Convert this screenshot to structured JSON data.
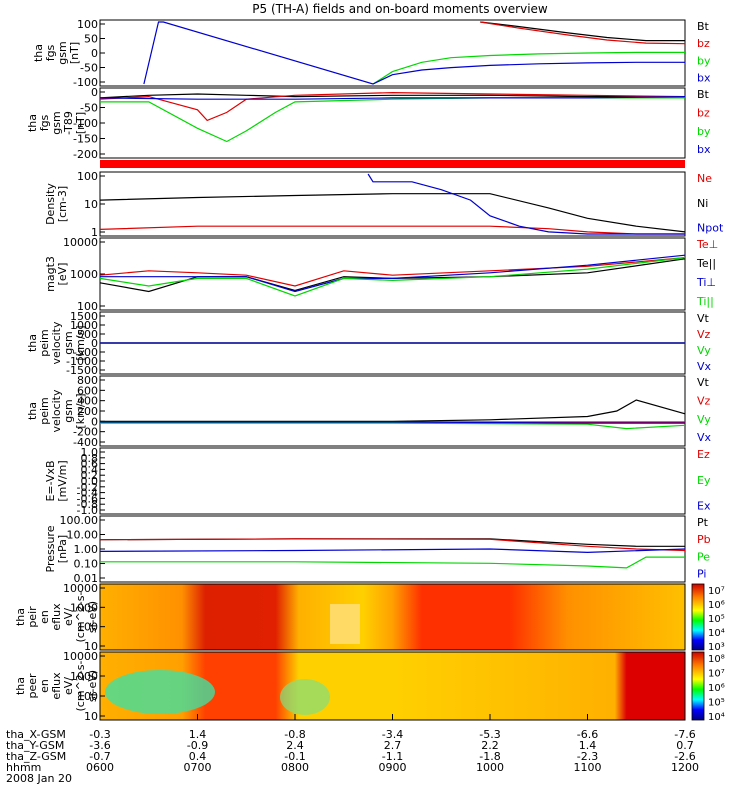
{
  "title": "P5 (TH-A) fields and on-board moments overview",
  "colors": {
    "black": "#000000",
    "red": "#e00000",
    "green": "#00d800",
    "blue": "#0000d0",
    "band": "#ff0000"
  },
  "panels": [
    {
      "id": "fgs",
      "ylabel": [
        "tha",
        "fgs",
        "gsm",
        "[nT]"
      ],
      "ylim": [
        -100,
        100
      ],
      "ticks": [
        "100",
        "50",
        "0",
        "-50",
        "-100"
      ],
      "legend": [
        {
          "label": "Bt",
          "color": "black"
        },
        {
          "label": "bz",
          "color": "red"
        },
        {
          "label": "by",
          "color": "green"
        },
        {
          "label": "bx",
          "color": "blue"
        }
      ]
    },
    {
      "id": "fgs_t89",
      "ylabel": [
        "tha",
        "fgs",
        "gsm",
        "-T89",
        "[nT]"
      ],
      "ylim": [
        -225,
        25
      ],
      "ticks": [
        "0",
        "-50",
        "-100",
        "-150",
        "-200"
      ],
      "legend": [
        {
          "label": "Bt",
          "color": "black"
        },
        {
          "label": "bz",
          "color": "red"
        },
        {
          "label": "by",
          "color": "green"
        },
        {
          "label": "bx",
          "color": "blue"
        }
      ]
    },
    {
      "id": "density",
      "ylabel": [
        "Density",
        "[cm-3]"
      ],
      "ylim": [
        1,
        200
      ],
      "log": true,
      "ticks": [
        "100",
        "10",
        "1"
      ],
      "legend": [
        {
          "label": "Ne",
          "color": "red"
        },
        {
          "label": "Ni",
          "color": "black"
        },
        {
          "label": "Npot",
          "color": "blue"
        }
      ]
    },
    {
      "id": "temperature",
      "ylabel": [
        "magt3",
        "[eV]"
      ],
      "ylim": [
        20,
        10000
      ],
      "log": true,
      "ticks": [
        "10000",
        "1000",
        "100"
      ],
      "legend": [
        {
          "label": "Te⊥",
          "color": "red"
        },
        {
          "label": "Te||",
          "color": "black"
        },
        {
          "label": "Ti⊥",
          "color": "blue"
        },
        {
          "label": "Ti||",
          "color": "green"
        }
      ]
    },
    {
      "id": "eesa_vel",
      "ylabel": [
        "tha",
        "peim",
        "velocity",
        "gsm",
        "[km/s]"
      ],
      "ylim": [
        -1500,
        1500
      ],
      "ticks": [
        "1500",
        "1000",
        "500",
        "0",
        "-500",
        "-1000",
        "-1500"
      ],
      "legend": [
        {
          "label": "Vt",
          "color": "black"
        },
        {
          "label": "Vz",
          "color": "red"
        },
        {
          "label": "Vy",
          "color": "green"
        },
        {
          "label": "Vx",
          "color": "blue"
        }
      ]
    },
    {
      "id": "iesa_vel",
      "ylabel": [
        "tha",
        "peim",
        "velocity",
        "gsm",
        "[km/s]"
      ],
      "ylim": [
        -400,
        800
      ],
      "ticks": [
        "800",
        "600",
        "400",
        "200",
        "0",
        "-200",
        "-400"
      ],
      "legend": [
        {
          "label": "Vt",
          "color": "black"
        },
        {
          "label": "Vz",
          "color": "red"
        },
        {
          "label": "Vy",
          "color": "green"
        },
        {
          "label": "Vx",
          "color": "blue"
        }
      ]
    },
    {
      "id": "efield",
      "ylabel": [
        "E=-VxB",
        "[mV/m]"
      ],
      "ylim": [
        -1,
        1
      ],
      "ticks": [
        "1.0",
        "0.8",
        "0.6",
        "0.4",
        "0.2",
        "0.0",
        "-0.2",
        "-0.4",
        "-0.6",
        "-0.8",
        "-1.0"
      ],
      "legend": [
        {
          "label": "Ez",
          "color": "red"
        },
        {
          "label": "Ey",
          "color": "green"
        },
        {
          "label": "Ex",
          "color": "blue"
        }
      ]
    },
    {
      "id": "pressure",
      "ylabel": [
        "Pressure",
        "[nPa]"
      ],
      "ylim": [
        0.01,
        100
      ],
      "log": true,
      "ticks": [
        "100.00",
        "10.00",
        "1.00",
        "0.10",
        "0.01"
      ],
      "legend": [
        {
          "label": "Pt",
          "color": "black"
        },
        {
          "label": "Pb",
          "color": "red"
        },
        {
          "label": "Pe",
          "color": "green"
        },
        {
          "label": "Pi",
          "color": "blue"
        }
      ]
    },
    {
      "id": "ion_spec",
      "ylabel": [
        "tha",
        "peir",
        "en",
        "eflux",
        "eV/",
        "(cm^2-s-",
        "sr-eV)"
      ],
      "ticks": [
        "10000",
        "1000",
        "100",
        "10"
      ],
      "colorbar_ticks": [
        "10⁷",
        "10⁶",
        "10⁵",
        "10⁴",
        "10³"
      ]
    },
    {
      "id": "elec_spec",
      "ylabel": [
        "tha",
        "peer",
        "en",
        "eflux",
        "eV/",
        "(cm^2-s-",
        "sr-eV)"
      ],
      "ticks": [
        "10000",
        "1000",
        "100",
        "10"
      ],
      "colorbar_ticks": [
        "10⁸",
        "10⁷",
        "10⁶",
        "10⁵",
        "10⁴"
      ]
    }
  ],
  "xaxis": {
    "row_labels": [
      "tha_X-GSM",
      "tha_Y-GSM",
      "tha_Z-GSM",
      "hhmm",
      "2008 Jan 20"
    ],
    "columns": [
      [
        "-0.3",
        "-3.6",
        "-0.7",
        "0600"
      ],
      [
        "1.4",
        "-0.9",
        "0.4",
        "0700"
      ],
      [
        "-0.8",
        "2.4",
        "-0.1",
        "0800"
      ],
      [
        "-3.4",
        "2.7",
        "-1.1",
        "0900"
      ],
      [
        "-5.3",
        "2.2",
        "-1.8",
        "1000"
      ],
      [
        "-6.6",
        "1.4",
        "-2.3",
        "1100"
      ],
      [
        "-7.6",
        "0.7",
        "-2.6",
        "1200"
      ]
    ]
  },
  "chart_data": [
    {
      "type": "line",
      "panel": "fgs",
      "x_unit": "hours UT",
      "ylim": [
        -100,
        100
      ],
      "series": [
        {
          "name": "Bt",
          "x": [
            9.9,
            10.3,
            10.8,
            11.2,
            11.6,
            12.0
          ],
          "y": [
            100,
            85,
            65,
            50,
            40,
            40
          ]
        },
        {
          "name": "bz",
          "x": [
            9.9,
            10.3,
            10.8,
            11.2,
            11.6,
            12.0
          ],
          "y": [
            100,
            80,
            58,
            42,
            32,
            30
          ]
        },
        {
          "name": "by",
          "x": [
            8.8,
            9.0,
            9.3,
            9.6,
            10.0,
            10.5,
            11.0,
            11.5,
            12.0
          ],
          "y": [
            -100,
            -60,
            -30,
            -15,
            -8,
            -3,
            0,
            2,
            2
          ]
        },
        {
          "name": "bx",
          "x": [
            6.45,
            6.6,
            6.65,
            8.8,
            9.0,
            9.3,
            9.6,
            10.0,
            10.5,
            11.0,
            11.5,
            12.0
          ],
          "y": [
            -100,
            100,
            100,
            -100,
            -70,
            -55,
            -47,
            -40,
            -35,
            -32,
            -30,
            -30
          ]
        }
      ]
    },
    {
      "type": "line",
      "panel": "fgs_t89",
      "x_unit": "hours UT",
      "ylim": [
        -225,
        25
      ],
      "series": [
        {
          "name": "Bt",
          "x": [
            6.0,
            6.5,
            7.0,
            7.5,
            8.0,
            9.0,
            10.0,
            11.0,
            12.0
          ],
          "y": [
            -5,
            5,
            10,
            5,
            0,
            5,
            5,
            0,
            0
          ]
        },
        {
          "name": "bz",
          "x": [
            6.0,
            6.5,
            7.0,
            7.1,
            7.3,
            7.5,
            8.0,
            9.0,
            10.0,
            11.0,
            12.0
          ],
          "y": [
            -10,
            0,
            -50,
            -90,
            -60,
            -10,
            5,
            15,
            10,
            5,
            0
          ]
        },
        {
          "name": "by",
          "x": [
            6.0,
            6.5,
            7.0,
            7.3,
            7.5,
            7.8,
            8.0,
            9.0,
            10.0,
            11.0,
            12.0
          ],
          "y": [
            -20,
            -20,
            -120,
            -170,
            -130,
            -60,
            -20,
            -10,
            -5,
            -5,
            -5
          ]
        },
        {
          "name": "bx",
          "x": [
            6.0,
            7.0,
            8.0,
            9.0,
            10.0,
            11.0,
            12.0
          ],
          "y": [
            -5,
            -10,
            -10,
            -5,
            -5,
            -5,
            0
          ]
        }
      ]
    },
    {
      "type": "line",
      "panel": "density",
      "x_unit": "hours UT",
      "log": true,
      "ylim": [
        1,
        200
      ],
      "series": [
        {
          "name": "Ne",
          "x": [
            6.0,
            7.0,
            8.0,
            9.0,
            10.0,
            10.6,
            11.0,
            11.5,
            12.0
          ],
          "y": [
            1.5,
            2,
            2,
            2,
            2,
            1.6,
            1.2,
            1.0,
            1.0
          ]
        },
        {
          "name": "Ni",
          "x": [
            6.0,
            7.0,
            8.0,
            9.0,
            10.0,
            10.6,
            11.0,
            11.5,
            12.0
          ],
          "y": [
            20,
            25,
            30,
            35,
            35,
            10,
            4,
            2,
            1.2
          ]
        },
        {
          "name": "Npot",
          "x": [
            8.75,
            8.8,
            9.2,
            9.5,
            9.8,
            10.0,
            10.3,
            10.6,
            11.0,
            12.0
          ],
          "y": [
            200,
            100,
            100,
            50,
            20,
            5,
            2,
            1.2,
            1.0,
            1.0
          ]
        }
      ]
    },
    {
      "type": "line",
      "panel": "temperature",
      "x_unit": "hours UT",
      "log": true,
      "ylim": [
        20,
        10000
      ],
      "series": [
        {
          "name": "Te⊥",
          "x": [
            6.0,
            6.5,
            7.0,
            7.5,
            8.0,
            8.5,
            9.0,
            10.0,
            11.0,
            12.0
          ],
          "y": [
            400,
            600,
            500,
            400,
            150,
            600,
            400,
            600,
            900,
            2000
          ]
        },
        {
          "name": "Te||",
          "x": [
            6.0,
            6.5,
            7.0,
            7.5,
            8.0,
            8.5,
            9.0,
            10.0,
            11.0,
            12.0
          ],
          "y": [
            200,
            90,
            350,
            350,
            100,
            350,
            300,
            350,
            500,
            1800
          ]
        },
        {
          "name": "Ti⊥",
          "x": [
            6.0,
            6.5,
            7.0,
            7.5,
            8.0,
            8.5,
            9.0,
            10.0,
            11.0,
            12.0
          ],
          "y": [
            350,
            350,
            350,
            350,
            90,
            300,
            300,
            500,
            1000,
            2500
          ]
        },
        {
          "name": "Ti||",
          "x": [
            6.0,
            6.5,
            7.0,
            7.5,
            8.0,
            8.5,
            9.0,
            10.0,
            11.0,
            12.0
          ],
          "y": [
            300,
            150,
            300,
            300,
            60,
            300,
            250,
            350,
            700,
            2000
          ]
        }
      ]
    },
    {
      "type": "line",
      "panel": "eesa_vel",
      "x_unit": "hours UT",
      "ylim": [
        -1500,
        1500
      ],
      "series": [
        {
          "name": "Vt",
          "x": [
            6.0,
            12.0
          ],
          "y": [
            0,
            0
          ]
        },
        {
          "name": "Vz",
          "x": [
            6.0,
            12.0
          ],
          "y": [
            0,
            0
          ]
        },
        {
          "name": "Vy",
          "x": [
            6.0,
            12.0
          ],
          "y": [
            0,
            0
          ]
        },
        {
          "name": "Vx",
          "x": [
            6.0,
            12.0
          ],
          "y": [
            0,
            0
          ]
        }
      ]
    },
    {
      "type": "line",
      "panel": "iesa_vel",
      "x_unit": "hours UT",
      "ylim": [
        -400,
        800
      ],
      "series": [
        {
          "name": "Vt",
          "x": [
            6.0,
            9.0,
            10.0,
            11.0,
            11.3,
            11.5,
            12.0
          ],
          "y": [
            10,
            10,
            40,
            100,
            200,
            400,
            150
          ]
        },
        {
          "name": "Vz",
          "x": [
            6.0,
            9.0,
            11.0,
            12.0
          ],
          "y": [
            0,
            0,
            0,
            0
          ]
        },
        {
          "name": "Vy",
          "x": [
            6.0,
            9.0,
            11.0,
            11.4,
            12.0
          ],
          "y": [
            -20,
            -20,
            -40,
            -120,
            -60
          ]
        },
        {
          "name": "Vx",
          "x": [
            6.0,
            9.0,
            11.0,
            12.0
          ],
          "y": [
            0,
            0,
            -20,
            -20
          ]
        }
      ]
    },
    {
      "type": "line",
      "panel": "pressure",
      "x_unit": "hours UT",
      "log": true,
      "ylim": [
        0.01,
        100
      ],
      "series": [
        {
          "name": "Pt",
          "x": [
            6.0,
            8.0,
            10.0,
            10.5,
            11.0,
            11.5,
            12.0
          ],
          "y": [
            4,
            4.5,
            4.5,
            3,
            2,
            1.5,
            1.5
          ]
        },
        {
          "name": "Pb",
          "x": [
            6.0,
            8.0,
            10.0,
            10.5,
            11.0,
            11.5,
            12.0
          ],
          "y": [
            4,
            4.5,
            4.2,
            2.5,
            1.5,
            1,
            0.8
          ]
        },
        {
          "name": "Pe",
          "x": [
            6.0,
            8.0,
            10.0,
            11.0,
            11.4,
            11.6,
            12.0
          ],
          "y": [
            0.15,
            0.15,
            0.12,
            0.08,
            0.06,
            0.3,
            0.3
          ]
        },
        {
          "name": "Pi",
          "x": [
            6.0,
            8.0,
            10.0,
            11.0,
            12.0
          ],
          "y": [
            0.7,
            0.8,
            1.0,
            0.6,
            1.0
          ]
        }
      ]
    },
    {
      "type": "heatmap",
      "panel": "ion_spec",
      "x_unit": "hours UT",
      "y_unit": "eV",
      "description_values": "energy flux levels: red≈1e7, orange≈1e6, yellow≈1e5"
    },
    {
      "type": "heatmap",
      "panel": "elec_spec",
      "x_unit": "hours UT",
      "y_unit": "eV",
      "description_values": "energy flux levels: red≈1e7, orange≈1e6, yellow≈1e5, green≈1e4"
    }
  ]
}
